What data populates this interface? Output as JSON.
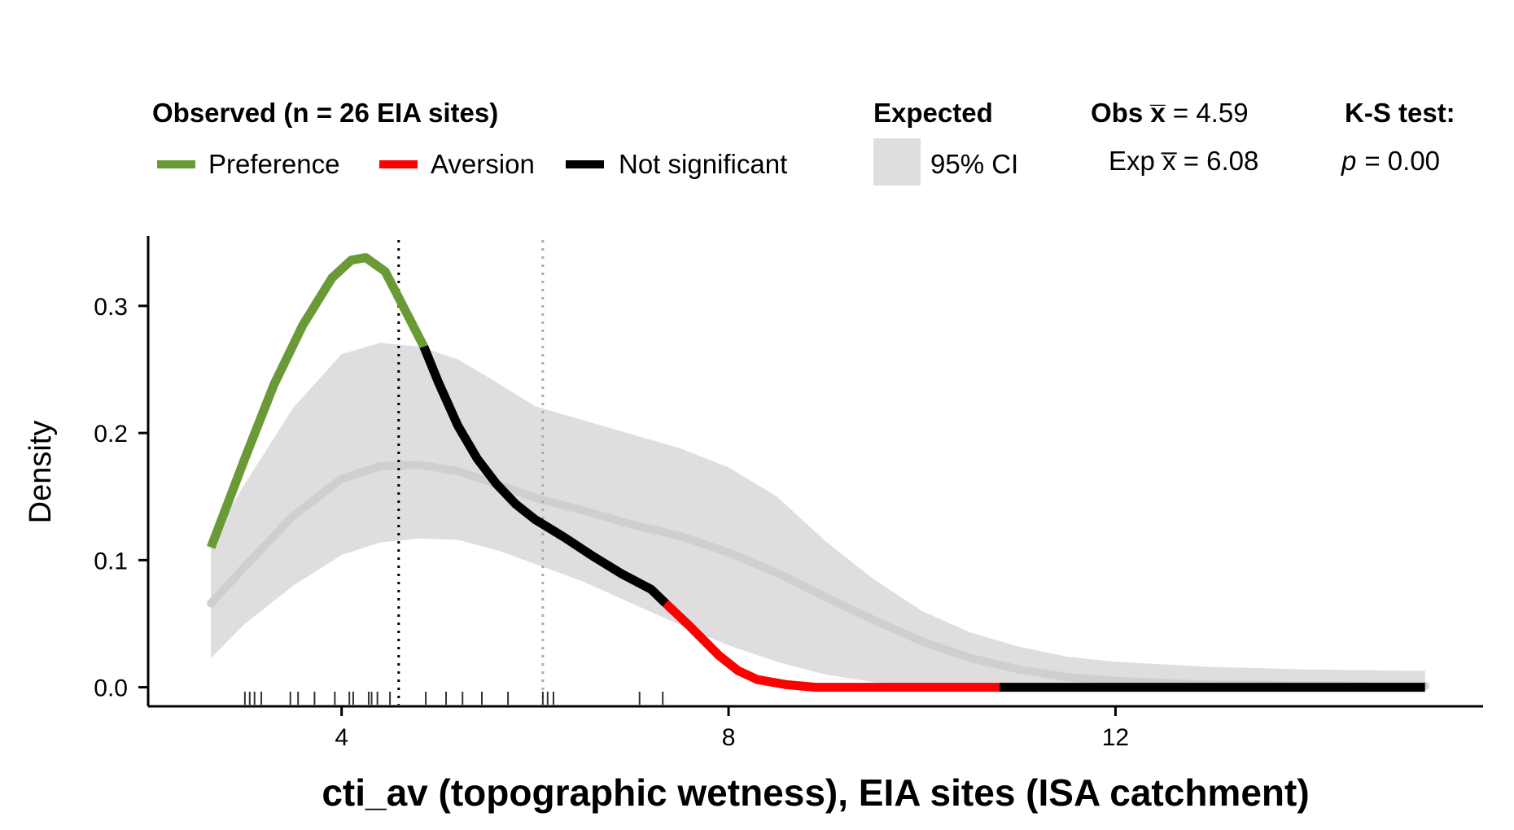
{
  "chart_data": {
    "type": "line",
    "xlabel": "cti_av (topographic wetness), EIA sites (ISA catchment)",
    "ylabel": "Density",
    "xlim": [
      2.0,
      15.8
    ],
    "ylim": [
      -0.015,
      0.355
    ],
    "x_ticks": [
      4,
      8,
      12
    ],
    "x_tick_labels": [
      "4",
      "8",
      "12"
    ],
    "y_ticks": [
      0.0,
      0.1,
      0.2,
      0.3
    ],
    "y_tick_labels": [
      "0.0",
      "0.1",
      "0.2",
      "0.3"
    ],
    "grid": false,
    "legend_placement": "top",
    "legend": {
      "observed_title": "Observed (n = 26 EIA sites)",
      "items": [
        {
          "label": "Preference",
          "color": "#6a9a35"
        },
        {
          "label": "Aversion",
          "color": "#ff0000"
        },
        {
          "label": "Not significant",
          "color": "#000000"
        }
      ],
      "expected_title": "Expected",
      "ci_label": "95% CI",
      "ci_color": "#dedede",
      "obs_mean_text": "Obs x̅ = 4.59",
      "exp_mean_text": "Exp x̅ = 6.08",
      "ks_title": "K-S test:",
      "ks_p_label": "p",
      "ks_p_value": "= 0.00"
    },
    "observed_mean": 4.59,
    "expected_mean": 6.08,
    "expected": {
      "x": [
        2.65,
        3.0,
        3.5,
        4.0,
        4.4,
        4.8,
        5.2,
        5.6,
        6.0,
        6.5,
        7.0,
        7.5,
        8.0,
        8.5,
        9.0,
        9.5,
        10.0,
        10.5,
        11.0,
        11.5,
        12.0,
        13.0,
        14.0,
        15.0,
        15.2
      ],
      "mean": [
        0.066,
        0.095,
        0.135,
        0.164,
        0.174,
        0.175,
        0.17,
        0.16,
        0.149,
        0.139,
        0.128,
        0.119,
        0.106,
        0.09,
        0.071,
        0.053,
        0.036,
        0.023,
        0.014,
        0.008,
        0.005,
        0.002,
        0.0015,
        0.001,
        0.001
      ],
      "lower": [
        0.023,
        0.05,
        0.08,
        0.104,
        0.114,
        0.117,
        0.116,
        0.108,
        0.097,
        0.083,
        0.066,
        0.049,
        0.033,
        0.02,
        0.01,
        0.004,
        0.001,
        0.0,
        0.0,
        0.0,
        0.0,
        0.0,
        0.0,
        0.0,
        0.0
      ],
      "upper": [
        0.116,
        0.16,
        0.22,
        0.262,
        0.271,
        0.268,
        0.258,
        0.24,
        0.221,
        0.21,
        0.199,
        0.188,
        0.173,
        0.15,
        0.115,
        0.085,
        0.06,
        0.043,
        0.032,
        0.024,
        0.02,
        0.016,
        0.014,
        0.013,
        0.013
      ]
    },
    "series": [
      {
        "name": "Preference",
        "color": "#6a9a35",
        "x": [
          2.65,
          3.0,
          3.3,
          3.6,
          3.9,
          4.1,
          4.25,
          4.45,
          4.6,
          4.85
        ],
        "y": [
          0.11,
          0.18,
          0.238,
          0.285,
          0.322,
          0.336,
          0.338,
          0.327,
          0.305,
          0.268
        ]
      },
      {
        "name": "Not significant",
        "color": "#000000",
        "x": [
          4.85,
          5.0,
          5.2,
          5.4,
          5.6,
          5.8,
          6.0,
          6.3,
          6.6,
          6.9,
          7.2,
          7.35
        ],
        "y": [
          0.268,
          0.24,
          0.206,
          0.18,
          0.16,
          0.144,
          0.132,
          0.118,
          0.103,
          0.089,
          0.077,
          0.066
        ]
      },
      {
        "name": "Aversion",
        "color": "#ff0000",
        "x": [
          7.35,
          7.6,
          7.9,
          8.1,
          8.3,
          8.6,
          8.9,
          9.5,
          10.8
        ],
        "y": [
          0.066,
          0.048,
          0.025,
          0.013,
          0.006,
          0.002,
          0.0,
          0.0,
          0.0
        ]
      },
      {
        "name": "Not significant",
        "color": "#000000",
        "x": [
          10.8,
          12.0,
          13.5,
          15.2
        ],
        "y": [
          0.0,
          0.0,
          0.0,
          0.0
        ]
      }
    ],
    "rug_x": [
      3.0,
      3.05,
      3.1,
      3.17,
      3.47,
      3.55,
      3.72,
      3.93,
      4.08,
      4.12,
      4.28,
      4.31,
      4.37,
      4.5,
      4.87,
      5.08,
      5.25,
      5.45,
      5.72,
      6.08,
      6.13,
      6.19,
      7.08,
      7.32
    ]
  }
}
